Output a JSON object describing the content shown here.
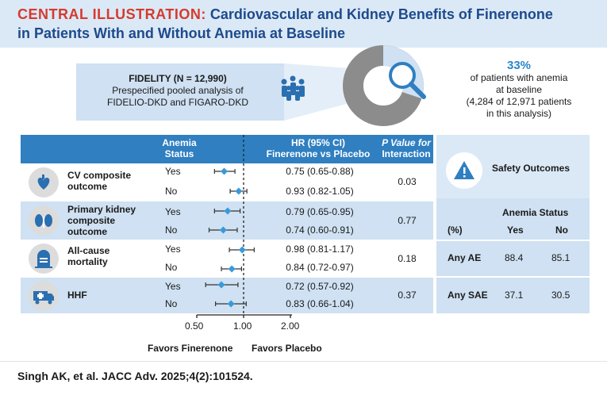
{
  "title": {
    "lead": "CENTRAL ILLUSTRATION:",
    "line1_rest": "Cardiovascular and Kidney Benefits of Finerenone",
    "line2": "in Patients With and Without Anemia at Baseline"
  },
  "fidelity": {
    "name": "FIDELITY (N = 12,990)",
    "line2": "Prespecified pooled analysis of",
    "line3": "FIDELIO-DKD and FIGARO-DKD"
  },
  "stat": {
    "percent": "33%",
    "line1": "of patients with anemia",
    "line2": "at baseline",
    "line3": "(4,284 of 12,971 patients",
    "line4": "in this analysis)"
  },
  "table_header": {
    "anemia_status": [
      "Anemia",
      "Status"
    ],
    "hr": [
      "HR (95% CI)",
      "Finerenone vs Placebo"
    ],
    "p_value": [
      "P Value for",
      "Interaction"
    ]
  },
  "outcomes": [
    {
      "label": [
        "CV composite",
        "outcome"
      ],
      "icon": "heart-icon",
      "p_value": "0.03",
      "rows": [
        {
          "status": "Yes",
          "hr_text": "0.75 (0.65-0.88)",
          "hr": 0.75,
          "lo": 0.65,
          "hi": 0.88
        },
        {
          "status": "No",
          "hr_text": "0.93 (0.82-1.05)",
          "hr": 0.93,
          "lo": 0.82,
          "hi": 1.05
        }
      ]
    },
    {
      "label": [
        "Primary kidney",
        "composite",
        "outcome"
      ],
      "icon": "kidney-icon",
      "p_value": "0.77",
      "rows": [
        {
          "status": "Yes",
          "hr_text": "0.79 (0.65-0.95)",
          "hr": 0.79,
          "lo": 0.65,
          "hi": 0.95
        },
        {
          "status": "No",
          "hr_text": "0.74 (0.60-0.91)",
          "hr": 0.74,
          "lo": 0.6,
          "hi": 0.91
        }
      ]
    },
    {
      "label": [
        "All-cause",
        "mortality"
      ],
      "icon": "tombstone-icon",
      "p_value": "0.18",
      "rows": [
        {
          "status": "Yes",
          "hr_text": "0.98 (0.81-1.17)",
          "hr": 0.98,
          "lo": 0.81,
          "hi": 1.17
        },
        {
          "status": "No",
          "hr_text": "0.84 (0.72-0.97)",
          "hr": 0.84,
          "lo": 0.72,
          "hi": 0.97
        }
      ]
    },
    {
      "label": [
        "HHF"
      ],
      "icon": "ambulance-icon",
      "p_value": "0.37",
      "rows": [
        {
          "status": "Yes",
          "hr_text": "0.72 (0.57-0.92)",
          "hr": 0.72,
          "lo": 0.57,
          "hi": 0.92
        },
        {
          "status": "No",
          "hr_text": "0.83 (0.66-1.04)",
          "hr": 0.83,
          "lo": 0.66,
          "hi": 1.04
        }
      ]
    }
  ],
  "axis": {
    "ticks": [
      "0.50",
      "1.00",
      "2.00"
    ],
    "tick_values": [
      0.5,
      1.0,
      2.0
    ],
    "favors_left": "Favors Finerenone",
    "favors_right": "Favors Placebo"
  },
  "safety": {
    "title": "Safety Outcomes",
    "anemia_status_label": "Anemia Status",
    "pct_label": "(%)",
    "col_yes": "Yes",
    "col_no": "No",
    "rows": [
      {
        "label": "Any AE",
        "yes": "88.4",
        "no": "85.1"
      },
      {
        "label": "Any SAE",
        "yes": "37.1",
        "no": "30.5"
      }
    ]
  },
  "citation": "Singh AK, et al. JACC Adv. 2025;4(2):101524.",
  "colors": {
    "accent": "#2f7fc1",
    "title": "#1e4a8c",
    "lead": "#d63a2e",
    "marker": "#3a9ad9"
  }
}
